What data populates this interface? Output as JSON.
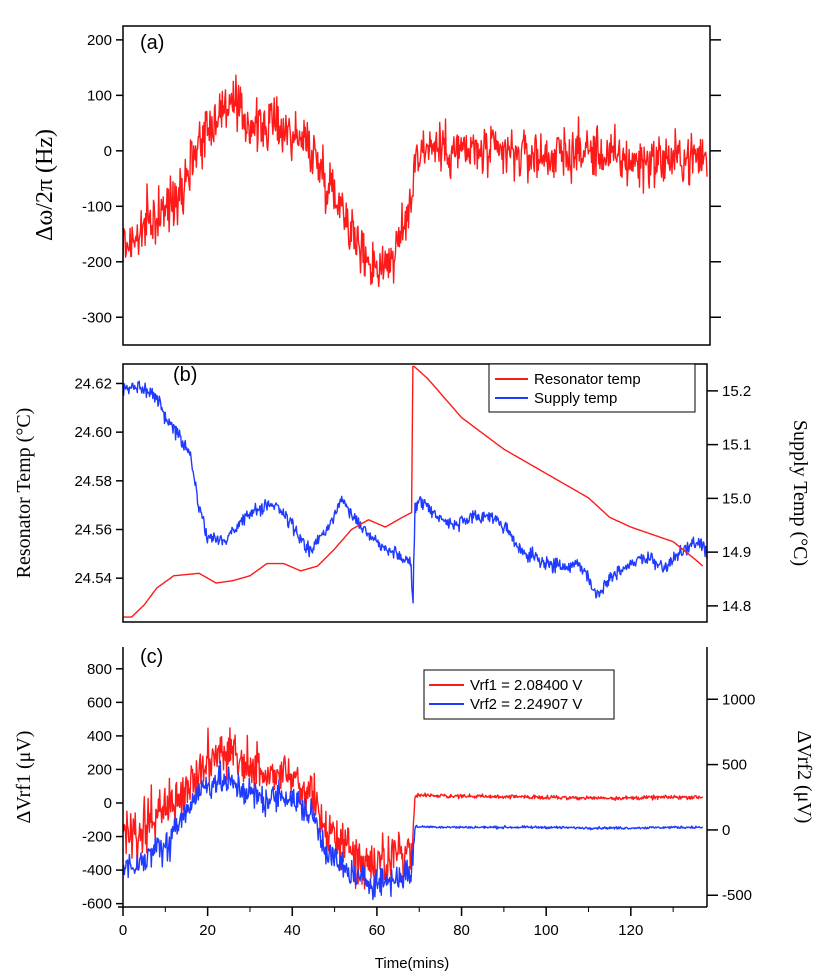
{
  "colors": {
    "red": "#ff1a1a",
    "blue": "#1f3bff",
    "axis": "#000000"
  },
  "x_label": "Time(mins)",
  "x_ticks": [
    0,
    20,
    40,
    60,
    80,
    100,
    120
  ],
  "chart_data": [
    {
      "panel": "(a)",
      "type": "line",
      "ylabel": "Δω/2π (Hz)",
      "xlim": [
        0,
        138
      ],
      "ylim": [
        -350,
        225
      ],
      "y_ticks": [
        200,
        100,
        0,
        -100,
        -200,
        -300
      ],
      "series": [
        {
          "name": "Δω/2π",
          "color": "red",
          "noise": 45,
          "x": [
            0,
            3,
            6,
            10,
            14,
            18,
            22,
            25,
            28,
            32,
            36,
            40,
            44,
            48,
            52,
            56,
            60,
            64,
            66,
            68,
            69,
            72,
            80,
            90,
            100,
            110,
            120,
            130,
            138
          ],
          "y": [
            -170,
            -160,
            -130,
            -110,
            -60,
            20,
            60,
            90,
            60,
            40,
            50,
            30,
            10,
            -50,
            -100,
            -180,
            -210,
            -190,
            -150,
            -90,
            -10,
            10,
            0,
            -5,
            -10,
            0,
            -20,
            -15,
            -10
          ]
        }
      ]
    },
    {
      "panel": "(b)",
      "type": "line",
      "ylabel": "Resonator Temp (°C)",
      "ylabel_right": "Supply Temp (°C)",
      "xlim": [
        0,
        138
      ],
      "ylim": [
        24.522,
        24.628
      ],
      "ylim_right": [
        14.77,
        15.25
      ],
      "y_ticks": [
        "24.62",
        "24.60",
        "24.58",
        "24.56",
        "24.54"
      ],
      "y_ticks_right": [
        "15.2",
        "15.1",
        "15.0",
        "14.9",
        "14.8"
      ],
      "legend": [
        "Resonator temp",
        "Supply temp"
      ],
      "series": [
        {
          "name": "Resonator temp",
          "color": "red",
          "axis": "left",
          "noise": 0,
          "x": [
            0,
            2,
            5,
            8,
            12,
            18,
            22,
            26,
            30,
            34,
            38,
            42,
            46,
            50,
            54,
            58,
            62,
            66,
            68.2,
            68.5,
            68.8,
            72,
            80,
            90,
            100,
            110,
            115,
            120,
            125,
            130,
            135,
            137
          ],
          "y": [
            24.524,
            24.524,
            24.529,
            24.536,
            24.541,
            24.542,
            24.538,
            24.539,
            24.541,
            24.546,
            24.546,
            24.543,
            24.545,
            24.552,
            24.56,
            24.564,
            24.561,
            24.565,
            24.567,
            24.627,
            24.627,
            24.622,
            24.606,
            24.593,
            24.583,
            24.573,
            24.565,
            24.561,
            24.558,
            24.555,
            24.548,
            24.545
          ]
        },
        {
          "name": "Supply temp",
          "color": "blue",
          "axis": "right",
          "noise": 0.012,
          "x": [
            0,
            4,
            8,
            10,
            13,
            16,
            18,
            20,
            24,
            28,
            32,
            36,
            40,
            44,
            48,
            52,
            56,
            60,
            64,
            66,
            68,
            68.5,
            69,
            70,
            74,
            78,
            82,
            86,
            90,
            94,
            100,
            104,
            108,
            112,
            116,
            120,
            124,
            128,
            132,
            136,
            138
          ],
          "y": [
            15.2,
            15.21,
            15.19,
            15.15,
            15.12,
            15.08,
            14.98,
            14.93,
            14.92,
            14.96,
            14.98,
            14.99,
            14.95,
            14.9,
            14.94,
            15.0,
            14.95,
            14.92,
            14.9,
            14.89,
            14.88,
            14.8,
            14.98,
            15.0,
            14.97,
            14.95,
            14.96,
            14.97,
            14.95,
            14.9,
            14.88,
            14.87,
            14.88,
            14.82,
            14.86,
            14.88,
            14.89,
            14.87,
            14.9,
            14.92,
            14.9
          ]
        }
      ]
    },
    {
      "panel": "(c)",
      "type": "line",
      "ylabel": "ΔVrf1 (μV)",
      "ylabel_right": "ΔVrf2 (μV)",
      "xlim": [
        0,
        138
      ],
      "ylim": [
        -620,
        930
      ],
      "ylim_right": [
        -590,
        1400
      ],
      "y_ticks": [
        800,
        600,
        400,
        200,
        0,
        -200,
        -400,
        -600
      ],
      "y_ticks_right": [
        1000,
        500,
        0,
        -500
      ],
      "legend": [
        "Vrf1 = 2.08400 V",
        "Vrf2 = 2.24907 V"
      ],
      "series": [
        {
          "name": "Vrf1 = 2.08400 V",
          "color": "red",
          "axis": "left",
          "noise": 140,
          "x": [
            0,
            3,
            6,
            10,
            14,
            18,
            22,
            26,
            30,
            34,
            38,
            42,
            45,
            48,
            52,
            56,
            60,
            64,
            68,
            68.5,
            69,
            80,
            100,
            110,
            120,
            130,
            137
          ],
          "y": [
            -150,
            -200,
            -100,
            -50,
            50,
            200,
            280,
            300,
            200,
            150,
            200,
            100,
            50,
            -150,
            -250,
            -330,
            -360,
            -310,
            -250,
            -200,
            45,
            40,
            35,
            30,
            30,
            35,
            35
          ]
        },
        {
          "name": "Vrf2 = 2.24907 V",
          "color": "blue",
          "axis": "right",
          "noise": 110,
          "x": [
            0,
            3,
            6,
            10,
            14,
            18,
            22,
            26,
            30,
            34,
            38,
            42,
            45,
            48,
            52,
            56,
            60,
            64,
            68,
            68.5,
            69,
            80,
            100,
            110,
            120,
            130,
            137
          ],
          "y": [
            -250,
            -300,
            -200,
            -120,
            100,
            300,
            380,
            350,
            280,
            220,
            280,
            180,
            100,
            -150,
            -300,
            -380,
            -400,
            -380,
            -320,
            -250,
            25,
            20,
            20,
            15,
            15,
            20,
            20
          ]
        }
      ]
    }
  ]
}
